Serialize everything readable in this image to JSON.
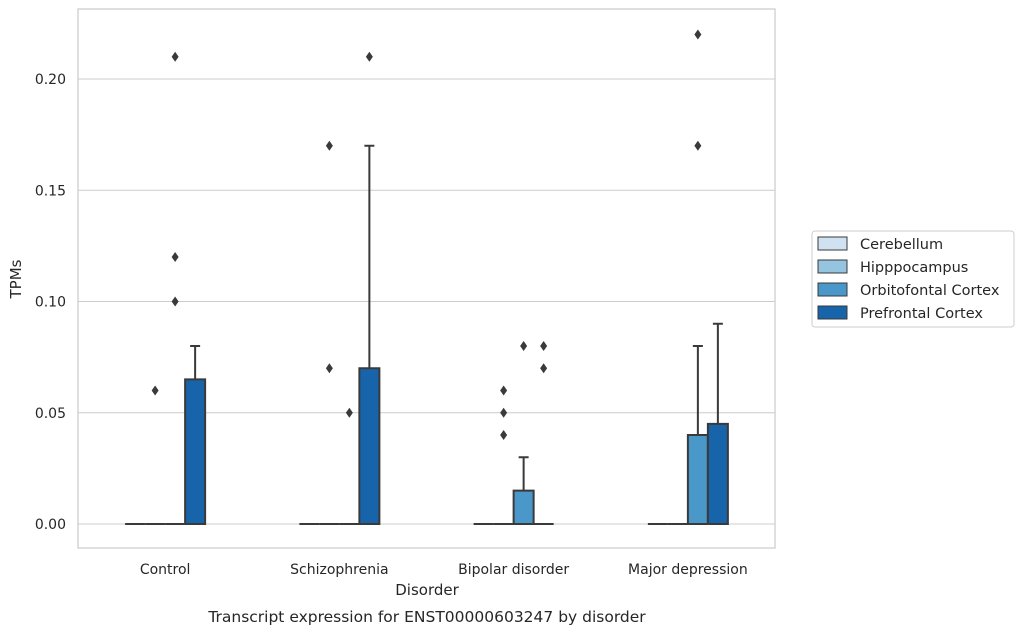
{
  "chart_data": {
    "type": "box",
    "xlabel": "Disorder",
    "ylabel": "TPMs",
    "caption": "Transcript expression for ENST00000603247 by disorder",
    "ylim": [
      -0.0105,
      0.232
    ],
    "yticks": [
      "0.00",
      "0.05",
      "0.10",
      "0.15",
      "0.20"
    ],
    "grid": "horizontal",
    "legend_position": "right",
    "categories": [
      "Control",
      "Schizophrenia",
      "Bipolar disorder",
      "Major depression"
    ],
    "series": [
      {
        "name": "Cerebellum",
        "color": "#d0e1f2",
        "boxes": [
          {
            "q1": 0,
            "median": 0,
            "q3": 0,
            "whisker_low": 0,
            "whisker_high": 0,
            "outliers": []
          },
          {
            "q1": 0,
            "median": 0,
            "q3": 0,
            "whisker_low": 0,
            "whisker_high": 0,
            "outliers": []
          },
          {
            "q1": 0,
            "median": 0,
            "q3": 0,
            "whisker_low": 0,
            "whisker_high": 0,
            "outliers": []
          },
          {
            "q1": 0,
            "median": 0,
            "q3": 0,
            "whisker_low": 0,
            "whisker_high": 0,
            "outliers": []
          }
        ]
      },
      {
        "name": "Hipppocampus",
        "color": "#94c4df",
        "boxes": [
          {
            "q1": 0,
            "median": 0,
            "q3": 0,
            "whisker_low": 0,
            "whisker_high": 0,
            "outliers": [
              0.06
            ]
          },
          {
            "q1": 0,
            "median": 0,
            "q3": 0,
            "whisker_low": 0,
            "whisker_high": 0,
            "outliers": [
              0.17,
              0.07
            ]
          },
          {
            "q1": 0,
            "median": 0,
            "q3": 0,
            "whisker_low": 0,
            "whisker_high": 0,
            "outliers": [
              0.06,
              0.05,
              0.04
            ]
          },
          {
            "q1": 0,
            "median": 0,
            "q3": 0,
            "whisker_low": 0,
            "whisker_high": 0,
            "outliers": []
          }
        ]
      },
      {
        "name": "Orbitofontal Cortex",
        "color": "#4a98c9",
        "boxes": [
          {
            "q1": 0,
            "median": 0,
            "q3": 0,
            "whisker_low": 0,
            "whisker_high": 0,
            "outliers": [
              0.21,
              0.12,
              0.1
            ]
          },
          {
            "q1": 0,
            "median": 0,
            "q3": 0,
            "whisker_low": 0,
            "whisker_high": 0,
            "outliers": [
              0.05
            ]
          },
          {
            "q1": 0,
            "median": 0,
            "q3": 0.015,
            "whisker_low": 0,
            "whisker_high": 0.03,
            "outliers": [
              0.08
            ]
          },
          {
            "q1": 0,
            "median": 0,
            "q3": 0.04,
            "whisker_low": 0,
            "whisker_high": 0.08,
            "outliers": [
              0.22,
              0.17
            ]
          }
        ]
      },
      {
        "name": "Prefrontal Cortex",
        "color": "#1764ab",
        "boxes": [
          {
            "q1": 0,
            "median": 0,
            "q3": 0.065,
            "whisker_low": 0,
            "whisker_high": 0.08,
            "outliers": []
          },
          {
            "q1": 0,
            "median": 0,
            "q3": 0.07,
            "whisker_low": 0,
            "whisker_high": 0.17,
            "outliers": [
              0.21
            ]
          },
          {
            "q1": 0,
            "median": 0,
            "q3": 0,
            "whisker_low": 0,
            "whisker_high": 0,
            "outliers": [
              0.08,
              0.07
            ]
          },
          {
            "q1": 0,
            "median": 0,
            "q3": 0.045,
            "whisker_low": 0,
            "whisker_high": 0.09,
            "outliers": []
          }
        ]
      }
    ]
  }
}
